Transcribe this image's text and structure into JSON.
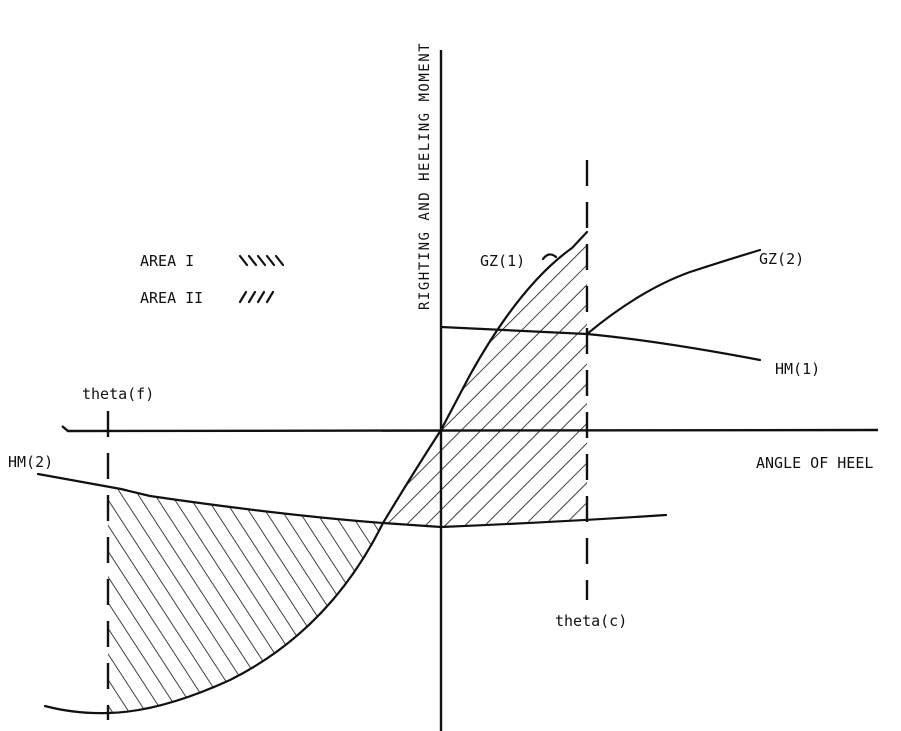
{
  "axes": {
    "y_label": "RIGHTING AND HEELING MOMENT",
    "x_label": "ANGLE OF HEEL"
  },
  "legend": {
    "area_1": {
      "label": "AREA I",
      "marker": "\\\\\\\\"
    },
    "area_2": {
      "label": "AREA II",
      "marker": "////"
    }
  },
  "curves": {
    "gz1": "GZ(1)",
    "gz2": "GZ(2)",
    "hm1": "HM(1)",
    "hm2": "HM(2)"
  },
  "angles": {
    "theta_f": "theta(f)",
    "theta_c": "theta(c)"
  }
}
